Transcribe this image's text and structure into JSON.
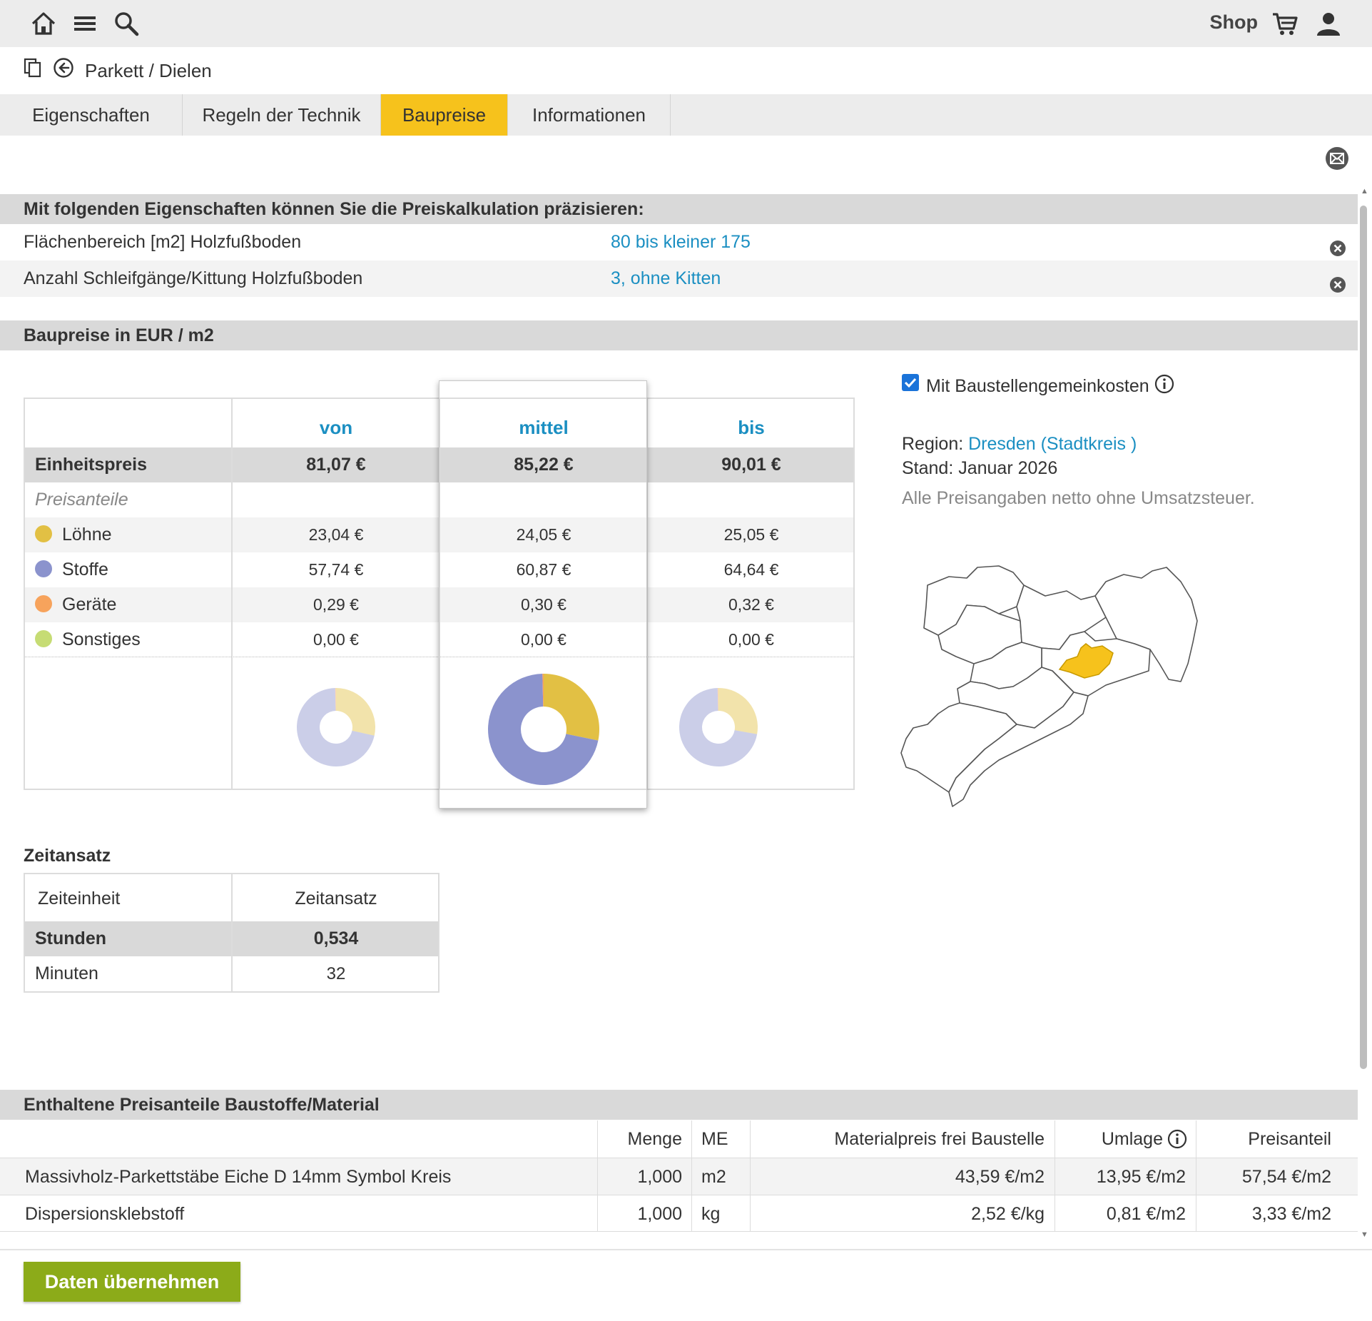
{
  "topbar": {
    "shop_label": "Shop",
    "icons": [
      "home-icon",
      "menu-icon",
      "search-icon",
      "cart-icon",
      "user-icon"
    ]
  },
  "breadcrumb": {
    "text": "Parkett / Dielen"
  },
  "tabs": [
    {
      "label": "Eigenschaften",
      "active": false
    },
    {
      "label": "Regeln der Technik",
      "active": false
    },
    {
      "label": "Baupreise",
      "active": true
    },
    {
      "label": "Informationen",
      "active": false
    }
  ],
  "properties": {
    "header": "Mit folgenden Eigenschaften können Sie die Preiskalkulation präzisieren:",
    "rows": [
      {
        "label": "Flächenbereich [m2] Holzfußboden",
        "value": "80 bis kleiner 175"
      },
      {
        "label": "Anzahl Schleifgänge/Kittung Holzfußboden",
        "value": "3, ohne Kitten"
      }
    ]
  },
  "prices": {
    "header": "Baupreise in EUR / m2",
    "columns": [
      "von",
      "mittel",
      "bis"
    ],
    "unit_price_label": "Einheitspreis",
    "unit_prices": [
      "81,07 €",
      "85,22 €",
      "90,01 €"
    ],
    "shares_label": "Preisanteile",
    "shares": [
      {
        "label": "Löhne",
        "color": "#e2c044",
        "values": [
          "23,04 €",
          "24,05 €",
          "25,05 €"
        ],
        "numeric": [
          23.04,
          24.05,
          25.05
        ]
      },
      {
        "label": "Stoffe",
        "color": "#8b93cd",
        "values": [
          "57,74 €",
          "60,87 €",
          "64,64 €"
        ],
        "numeric": [
          57.74,
          60.87,
          64.64
        ]
      },
      {
        "label": "Geräte",
        "color": "#f7a35c",
        "values": [
          "0,29 €",
          "0,30 €",
          "0,32 €"
        ],
        "numeric": [
          0.29,
          0.3,
          0.32
        ]
      },
      {
        "label": "Sonstiges",
        "color": "#c6dc74",
        "values": [
          "0,00 €",
          "0,00 €",
          "0,00 €"
        ],
        "numeric": [
          0,
          0,
          0
        ]
      }
    ]
  },
  "info": {
    "checkbox_label": "Mit Baustellengemeinkosten",
    "checkbox_checked": true,
    "region_label": "Region:",
    "region_value": "Dresden (Stadtkreis )",
    "stand": "Stand: Januar 2026",
    "note": "Alle Preisangaben netto ohne Umsatzsteuer.",
    "highlight_color": "#f6c21c"
  },
  "zeit": {
    "title": "Zeitansatz",
    "head": [
      "Zeiteinheit",
      "Zeitansatz"
    ],
    "rows": [
      {
        "label": "Stunden",
        "value": "0,534"
      },
      {
        "label": "Minuten",
        "value": "32"
      }
    ]
  },
  "material": {
    "header": "Enthaltene Preisanteile Baustoffe/Material",
    "columns": [
      "",
      "Menge",
      "ME",
      "Materialpreis frei Baustelle",
      "Umlage",
      "Preisanteil"
    ],
    "rows": [
      [
        "Massivholz-Parkettstäbe Eiche D 14mm Symbol Kreis",
        "1,000",
        "m2",
        "43,59 €/m2",
        "13,95 €/m2",
        "57,54 €/m2"
      ],
      [
        "Dispersionsklebstoff",
        "1,000",
        "kg",
        "2,52 €/kg",
        "0,81 €/m2",
        "3,33 €/m2"
      ]
    ]
  },
  "button_label": "Daten übernehmen"
}
